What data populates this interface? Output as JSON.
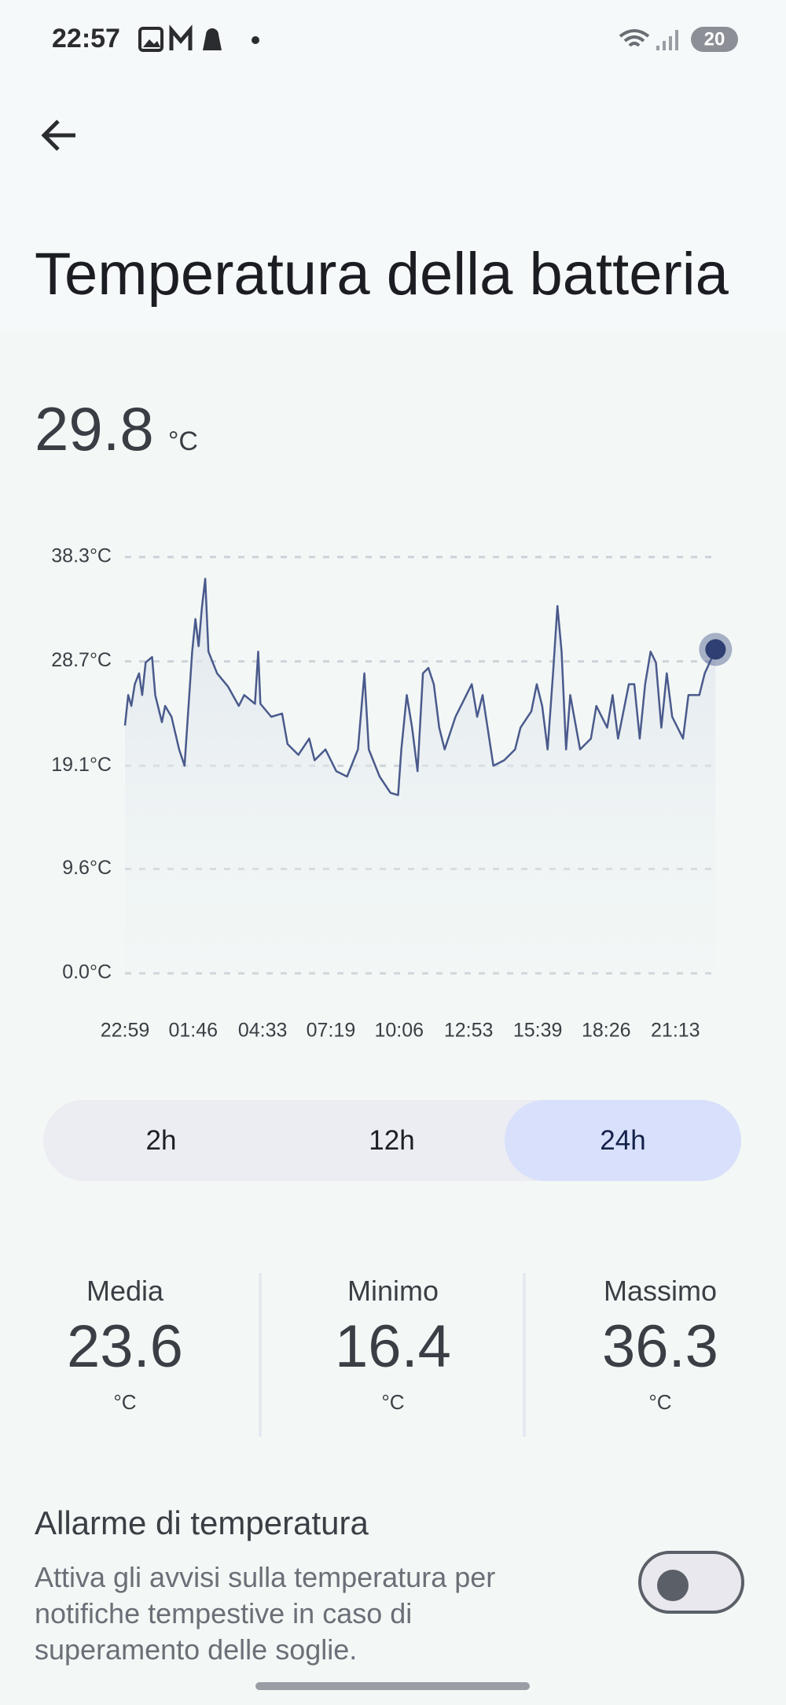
{
  "status_bar": {
    "time": "22:57",
    "battery": "20"
  },
  "header": {
    "title": "Temperatura della batteria"
  },
  "current": {
    "value": "29.8",
    "unit": "°C"
  },
  "chart_data": {
    "type": "line",
    "color": "#4a5a8c",
    "x": [
      0,
      0.13,
      0.26,
      0.4,
      0.57,
      0.7,
      0.84,
      1.1,
      1.23,
      1.5,
      1.63,
      1.89,
      2.2,
      2.42,
      2.73,
      2.86,
      2.99,
      3.12,
      3.26,
      3.39,
      3.74,
      4.18,
      4.62,
      4.84,
      5.28,
      5.41,
      5.5,
      5.94,
      6.38,
      6.6,
      7.04,
      7.48,
      7.7,
      8.14,
      8.58,
      9.02,
      9.46,
      9.72,
      9.9,
      10.34,
      10.78,
      11.09,
      11.22,
      11.44,
      11.66,
      11.88,
      12.1,
      12.32,
      12.54,
      12.76,
      12.98,
      13.42,
      13.64,
      14.08,
      14.3,
      14.52,
      14.96,
      15.4,
      15.84,
      16.06,
      16.5,
      16.72,
      16.94,
      17.16,
      17.38,
      17.56,
      17.73,
      17.91,
      18.08,
      18.48,
      18.92,
      19.14,
      19.58,
      19.8,
      20.02,
      20.46,
      20.68,
      20.9,
      21.12,
      21.34,
      21.56,
      21.78,
      22,
      22.22,
      22.66,
      22.88,
      23.32,
      23.54,
      23.98
    ],
    "values": [
      22.8,
      25.6,
      24.6,
      26.6,
      27.6,
      25.6,
      28.6,
      29.1,
      25.6,
      23.1,
      24.6,
      23.6,
      20.6,
      19.1,
      29.6,
      32.6,
      30.1,
      33.6,
      36.3,
      29.6,
      27.6,
      26.4,
      24.6,
      25.6,
      24.8,
      29.6,
      24.8,
      23.6,
      23.9,
      21.1,
      20.1,
      21.6,
      19.6,
      20.6,
      18.6,
      18.1,
      20.6,
      27.6,
      20.6,
      18.1,
      16.6,
      16.4,
      20.6,
      25.6,
      22.6,
      18.6,
      27.6,
      28.1,
      26.6,
      22.6,
      20.6,
      23.6,
      24.6,
      26.6,
      23.6,
      25.6,
      19.1,
      19.6,
      20.6,
      22.6,
      24.1,
      26.6,
      24.6,
      20.6,
      27.6,
      33.8,
      29.6,
      20.6,
      25.6,
      20.6,
      21.6,
      24.6,
      22.6,
      25.6,
      21.6,
      26.6,
      26.6,
      21.6,
      26.6,
      29.6,
      28.6,
      22.6,
      27.6,
      23.6,
      21.6,
      25.6,
      25.6,
      27.6,
      29.8
    ],
    "xlim": [
      0,
      24
    ],
    "ylim": [
      0,
      38.3
    ],
    "xticks": [
      {
        "value": 0,
        "label": "22:59"
      },
      {
        "value": 2.77,
        "label": "01:46"
      },
      {
        "value": 5.59,
        "label": "04:33"
      },
      {
        "value": 8.36,
        "label": "07:19"
      },
      {
        "value": 11.13,
        "label": "10:06"
      },
      {
        "value": 13.95,
        "label": "12:53"
      },
      {
        "value": 16.76,
        "label": "15:39"
      },
      {
        "value": 19.54,
        "label": "18:26"
      },
      {
        "value": 22.35,
        "label": "21:13"
      }
    ],
    "yticks": [
      {
        "value": 0,
        "label": "0.0°C"
      },
      {
        "value": 9.6,
        "label": "9.6°C"
      },
      {
        "value": 19.1,
        "label": "19.1°C"
      },
      {
        "value": 28.7,
        "label": "28.7°C"
      },
      {
        "value": 38.3,
        "label": "38.3°C"
      }
    ],
    "grid": true
  },
  "range": {
    "options": [
      "2h",
      "12h",
      "24h"
    ],
    "selected": 2
  },
  "stats": [
    {
      "label": "Media",
      "value": "23.6",
      "unit": "°C"
    },
    {
      "label": "Minimo",
      "value": "16.4",
      "unit": "°C"
    },
    {
      "label": "Massimo",
      "value": "36.3",
      "unit": "°C"
    }
  ],
  "alarm": {
    "title": "Allarme di temperatura",
    "description": "Attiva gli avvisi sulla temperatura per notifiche tempestive in caso di superamento delle soglie.",
    "enabled": false
  }
}
